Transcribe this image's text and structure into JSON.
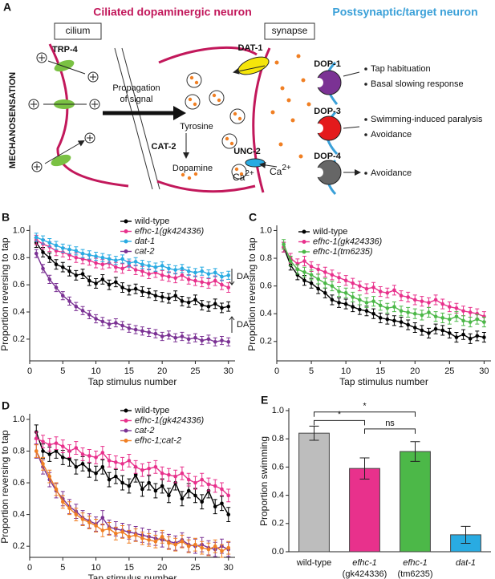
{
  "panel_a": {
    "label": "A",
    "left_title": "Ciliated dopaminergic neuron",
    "right_title": "Postsynaptic/target neuron",
    "cilium": "cilium",
    "synapse": "synapse",
    "trp4": "TRP-4",
    "mechanosensation": "MECHANOSENSATION",
    "propagation": [
      "Propagation",
      "of signal"
    ],
    "dat1": "DAT-1",
    "tyrosine": "Tyrosine",
    "cat2": "CAT-2",
    "dopamine": "Dopamine",
    "unc2": "UNC-2",
    "calcium": [
      {
        "base": "Ca",
        "sup": "2+"
      },
      {
        "base": "Ca",
        "sup": "2+"
      }
    ],
    "dop1": "DOP-1",
    "dop3": "DOP-3",
    "dop4": "DOP-4",
    "effects": [
      "Tap habituation",
      "Basal slowing response",
      "Swimming-induced paralysis",
      "Avoidance",
      "Avoidance"
    ]
  },
  "chart_data": [
    {
      "type": "line",
      "panel": "B",
      "xlabel": "Tap stimulus number",
      "ylabel": "Proportion reversing to tap",
      "x": [
        1,
        2,
        3,
        4,
        5,
        6,
        7,
        8,
        9,
        10,
        11,
        12,
        13,
        14,
        15,
        16,
        17,
        18,
        19,
        20,
        21,
        22,
        23,
        24,
        25,
        26,
        27,
        28,
        29,
        30
      ],
      "xlim": [
        0,
        31
      ],
      "xticks": [
        0,
        5,
        10,
        15,
        20,
        25,
        30
      ],
      "ylim": [
        0.04,
        1.02
      ],
      "yticks": [
        0.2,
        0.4,
        0.6,
        0.8,
        {
          "value": 1,
          "label": "1.0"
        }
      ],
      "legend": "upper center",
      "annotations": [
        "DA",
        "DA"
      ],
      "series": [
        {
          "name": "wild-type",
          "color": "#000000",
          "error": 0.035,
          "values": [
            0.91,
            0.84,
            0.8,
            0.75,
            0.73,
            0.7,
            0.67,
            0.68,
            0.63,
            0.61,
            0.64,
            0.6,
            0.62,
            0.58,
            0.56,
            0.57,
            0.55,
            0.54,
            0.52,
            0.51,
            0.5,
            0.52,
            0.48,
            0.47,
            0.49,
            0.45,
            0.44,
            0.46,
            0.43,
            0.44
          ]
        },
        {
          "name": "efhc-1(gk424336)",
          "color": "#e8318c",
          "error": 0.035,
          "values": [
            0.93,
            0.9,
            0.88,
            0.85,
            0.84,
            0.82,
            0.8,
            0.79,
            0.78,
            0.76,
            0.75,
            0.76,
            0.73,
            0.72,
            0.74,
            0.71,
            0.7,
            0.68,
            0.69,
            0.67,
            0.66,
            0.65,
            0.67,
            0.64,
            0.63,
            0.62,
            0.61,
            0.63,
            0.6,
            0.58
          ]
        },
        {
          "name": "dat-1",
          "color": "#29abe2",
          "error": 0.03,
          "values": [
            0.95,
            0.93,
            0.91,
            0.89,
            0.87,
            0.86,
            0.85,
            0.83,
            0.82,
            0.81,
            0.8,
            0.79,
            0.78,
            0.79,
            0.76,
            0.77,
            0.75,
            0.74,
            0.73,
            0.74,
            0.72,
            0.71,
            0.72,
            0.7,
            0.69,
            0.7,
            0.68,
            0.69,
            0.66,
            0.67
          ]
        },
        {
          "name": "cat-2",
          "color": "#7b3294",
          "error": 0.03,
          "values": [
            0.83,
            0.72,
            0.64,
            0.58,
            0.52,
            0.48,
            0.44,
            0.41,
            0.38,
            0.35,
            0.33,
            0.31,
            0.32,
            0.3,
            0.28,
            0.27,
            0.26,
            0.25,
            0.24,
            0.22,
            0.23,
            0.21,
            0.22,
            0.2,
            0.21,
            0.19,
            0.2,
            0.18,
            0.19,
            0.18
          ]
        }
      ]
    },
    {
      "type": "line",
      "panel": "C",
      "xlabel": "Tap stimulus number",
      "ylabel": "Proportion reversing to tap",
      "x": [
        1,
        2,
        3,
        4,
        5,
        6,
        7,
        8,
        9,
        10,
        11,
        12,
        13,
        14,
        15,
        16,
        17,
        18,
        19,
        20,
        21,
        22,
        23,
        24,
        25,
        26,
        27,
        28,
        29,
        30
      ],
      "xlim": [
        0,
        31
      ],
      "xticks": [
        0,
        5,
        10,
        15,
        20,
        25,
        30
      ],
      "ylim": [
        0.06,
        1.02
      ],
      "yticks": [
        0.2,
        0.4,
        0.6,
        0.8,
        {
          "value": 1,
          "label": "1.0"
        }
      ],
      "legend": "upper center",
      "series": [
        {
          "name": "wild-type",
          "color": "#000000",
          "error": 0.035,
          "values": [
            0.88,
            0.75,
            0.68,
            0.64,
            0.62,
            0.58,
            0.55,
            0.5,
            0.48,
            0.47,
            0.45,
            0.43,
            0.42,
            0.4,
            0.37,
            0.36,
            0.35,
            0.34,
            0.32,
            0.3,
            0.28,
            0.26,
            0.29,
            0.28,
            0.26,
            0.23,
            0.25,
            0.22,
            0.24,
            0.23
          ]
        },
        {
          "name": "efhc-1(gk424336)",
          "color": "#e8318c",
          "error": 0.035,
          "values": [
            0.88,
            0.8,
            0.76,
            0.78,
            0.74,
            0.72,
            0.7,
            0.68,
            0.66,
            0.64,
            0.62,
            0.6,
            0.58,
            0.59,
            0.56,
            0.55,
            0.57,
            0.53,
            0.52,
            0.5,
            0.49,
            0.48,
            0.5,
            0.47,
            0.45,
            0.44,
            0.42,
            0.41,
            0.4,
            0.38
          ]
        },
        {
          "name": "efhc-1(tm6235)",
          "color": "#4cb848",
          "error": 0.035,
          "values": [
            0.9,
            0.78,
            0.72,
            0.7,
            0.68,
            0.65,
            0.62,
            0.6,
            0.56,
            0.55,
            0.52,
            0.5,
            0.48,
            0.49,
            0.46,
            0.44,
            0.45,
            0.42,
            0.41,
            0.4,
            0.39,
            0.41,
            0.38,
            0.37,
            0.36,
            0.38,
            0.35,
            0.34,
            0.36,
            0.34
          ]
        }
      ]
    },
    {
      "type": "line",
      "panel": "D",
      "xlabel": "Tap stimulus number",
      "ylabel": "Proportion reversing to tap",
      "x": [
        1,
        2,
        3,
        4,
        5,
        6,
        7,
        8,
        9,
        10,
        11,
        12,
        13,
        14,
        15,
        16,
        17,
        18,
        19,
        20,
        21,
        22,
        23,
        24,
        25,
        26,
        27,
        28,
        29,
        30
      ],
      "xlim": [
        0,
        31
      ],
      "xticks": [
        0,
        5,
        10,
        15,
        20,
        25,
        30
      ],
      "ylim": [
        0.13,
        1.02
      ],
      "yticks": [
        0.2,
        0.4,
        0.6,
        0.8,
        {
          "value": 1,
          "label": "1.0"
        }
      ],
      "legend": "upper center",
      "series": [
        {
          "name": "wild-type",
          "color": "#000000",
          "error": 0.045,
          "values": [
            0.92,
            0.8,
            0.78,
            0.8,
            0.76,
            0.75,
            0.7,
            0.72,
            0.68,
            0.66,
            0.7,
            0.62,
            0.64,
            0.6,
            0.58,
            0.65,
            0.56,
            0.6,
            0.55,
            0.58,
            0.52,
            0.6,
            0.5,
            0.55,
            0.52,
            0.48,
            0.55,
            0.45,
            0.47,
            0.4
          ]
        },
        {
          "name": "efhc-1(gk424336)",
          "color": "#e8318c",
          "error": 0.04,
          "values": [
            0.88,
            0.86,
            0.84,
            0.85,
            0.83,
            0.8,
            0.82,
            0.78,
            0.77,
            0.76,
            0.79,
            0.74,
            0.73,
            0.72,
            0.74,
            0.7,
            0.68,
            0.69,
            0.7,
            0.66,
            0.65,
            0.64,
            0.66,
            0.62,
            0.6,
            0.62,
            0.59,
            0.58,
            0.56,
            0.52
          ]
        },
        {
          "name": "cat-2",
          "color": "#7b3294",
          "error": 0.045,
          "values": [
            0.8,
            0.7,
            0.62,
            0.55,
            0.5,
            0.45,
            0.42,
            0.38,
            0.36,
            0.34,
            0.38,
            0.32,
            0.31,
            0.3,
            0.29,
            0.28,
            0.27,
            0.26,
            0.25,
            0.24,
            0.23,
            0.22,
            0.24,
            0.21,
            0.2,
            0.21,
            0.19,
            0.18,
            0.2,
            0.18
          ]
        },
        {
          "name": "efhc-1;cat-2",
          "color": "#f07f23",
          "error": 0.04,
          "values": [
            0.8,
            0.72,
            0.64,
            0.56,
            0.48,
            0.44,
            0.4,
            0.37,
            0.35,
            0.33,
            0.3,
            0.31,
            0.28,
            0.29,
            0.26,
            0.27,
            0.25,
            0.24,
            0.23,
            0.26,
            0.22,
            0.21,
            0.23,
            0.2,
            0.21,
            0.19,
            0.18,
            0.2,
            0.17,
            0.19
          ]
        }
      ]
    },
    {
      "type": "bar",
      "panel": "E",
      "ylabel": "Proportion swimming",
      "categories": [
        [
          "wild-type"
        ],
        [
          "efhc-1",
          "(gk424336)"
        ],
        [
          "efhc-1",
          "(tm6235)"
        ],
        [
          "dat-1"
        ]
      ],
      "values": [
        0.84,
        0.59,
        0.71,
        0.12
      ],
      "errors": [
        0.05,
        0.075,
        0.07,
        0.06
      ],
      "colors": [
        "#bdbdbd",
        "#e8318c",
        "#4cb848",
        "#29abe2"
      ],
      "ylim": [
        0,
        1.0
      ],
      "yticks": [
        {
          "value": 0,
          "label": "0.0"
        },
        0.2,
        0.4,
        0.6,
        0.8,
        {
          "value": 1,
          "label": "1.0"
        }
      ],
      "annotations": [
        "*",
        "*",
        "ns"
      ]
    }
  ]
}
